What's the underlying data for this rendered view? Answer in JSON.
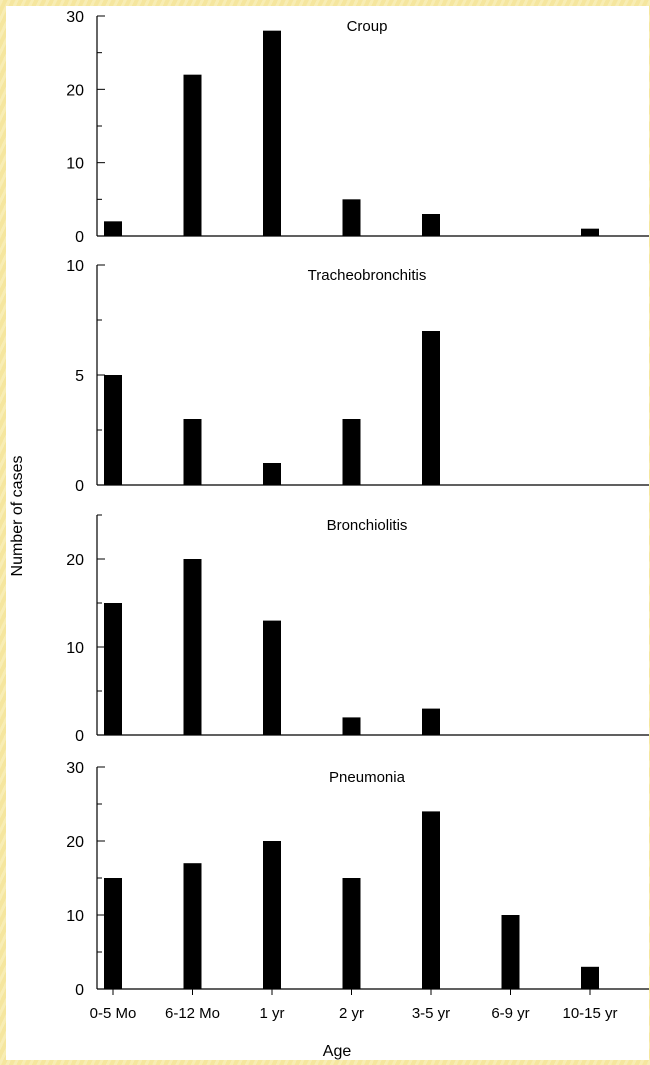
{
  "chart_data": {
    "type": "bar",
    "xlabel": "Age",
    "ylabel": "Number of cases",
    "categories": [
      "0-5 Mo",
      "6-12 Mo",
      "1 yr",
      "2 yr",
      "3-5 yr",
      "6-9 yr",
      "10-15 yr"
    ],
    "colors": {
      "bar": "#000000",
      "axis": "#000000",
      "background": "#ffffff"
    },
    "panels": [
      {
        "title": "Croup",
        "ylim": [
          0,
          30
        ],
        "yticks": [
          0,
          10,
          20,
          30
        ],
        "values": [
          2,
          22,
          28,
          5,
          3,
          0,
          1
        ]
      },
      {
        "title": "Tracheobronchitis",
        "ylim": [
          0,
          10
        ],
        "yticks": [
          0,
          5,
          10
        ],
        "values": [
          5,
          3,
          1,
          3,
          7,
          0,
          0
        ]
      },
      {
        "title": "Bronchiolitis",
        "ylim": [
          0,
          25
        ],
        "yticks": [
          0,
          10,
          20
        ],
        "values": [
          15,
          20,
          13,
          2,
          3,
          0,
          0
        ]
      },
      {
        "title": "Pneumonia",
        "ylim": [
          0,
          30
        ],
        "yticks": [
          0,
          10,
          20,
          30
        ],
        "values": [
          15,
          17,
          20,
          15,
          24,
          10,
          3
        ]
      }
    ]
  }
}
